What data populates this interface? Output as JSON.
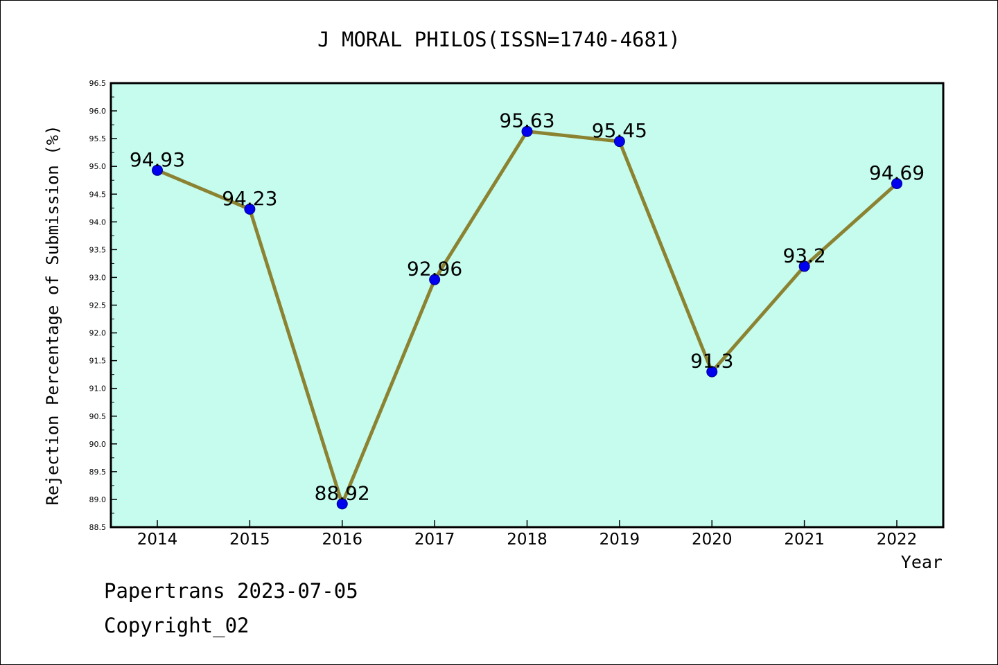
{
  "footer": {
    "line1": "Papertrans 2023-07-05",
    "line2": "Copyright_02"
  },
  "colors": {
    "plot_background": "#c6fcee",
    "line": "#8b8332",
    "marker_fill": "#0000ee",
    "marker_stroke": "#00008b",
    "axis": "#000000"
  },
  "chart_data": {
    "type": "line",
    "title": "J MORAL PHILOS(ISSN=1740-4681)",
    "xlabel": "Year",
    "ylabel": "Rejection Percentage of Submission (%)",
    "categories": [
      "2014",
      "2015",
      "2016",
      "2017",
      "2018",
      "2019",
      "2020",
      "2021",
      "2022"
    ],
    "series": [
      {
        "values": [
          94.93,
          94.23,
          88.92,
          92.96,
          95.63,
          95.45,
          91.3,
          93.2,
          94.69
        ]
      }
    ],
    "data_labels": [
      "94.93",
      "94.23",
      "88.92",
      "92.96",
      "95.63",
      "95.45",
      "91.3",
      "93.2",
      "94.69"
    ],
    "ylim": [
      88.5,
      96.5
    ],
    "yticks": [
      "88.5",
      "89.0",
      "89.5",
      "90.0",
      "90.5",
      "91.0",
      "91.5",
      "92.0",
      "92.5",
      "93.0",
      "93.5",
      "94.0",
      "94.5",
      "95.0",
      "95.5",
      "96.0",
      "96.5"
    ],
    "grid": false,
    "legend": "none"
  }
}
